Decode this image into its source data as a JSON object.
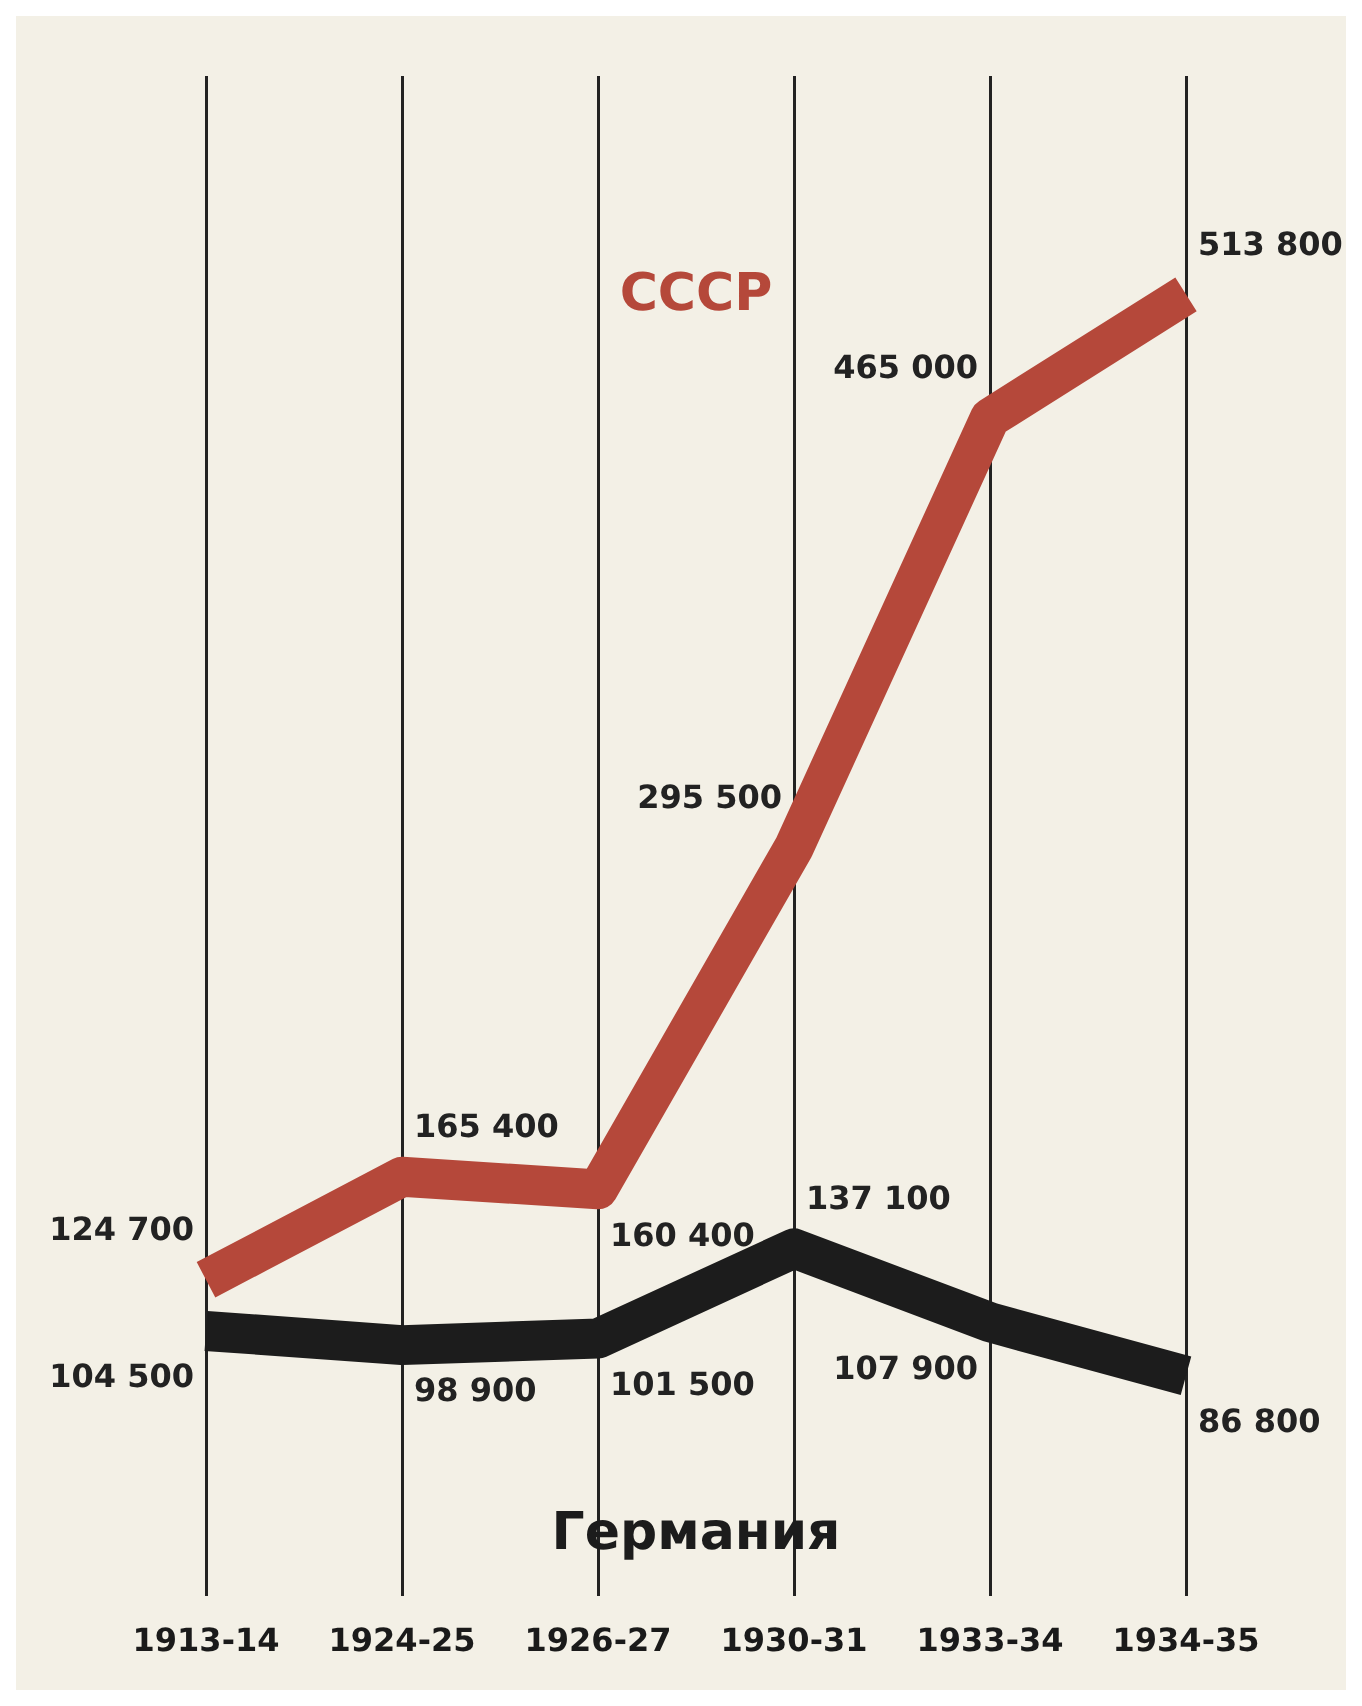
{
  "chart_data": {
    "type": "line",
    "categories": [
      "1913-14",
      "1924-25",
      "1926-27",
      "1930-31",
      "1933-34",
      "1934-35"
    ],
    "series": [
      {
        "name": "СССР",
        "color": "#b5483a",
        "values": [
          124700,
          165400,
          160400,
          295500,
          465000,
          513800
        ]
      },
      {
        "name": "Германия",
        "color": "#1c1c1c",
        "values": [
          104500,
          98900,
          101500,
          137100,
          107900,
          86800
        ]
      }
    ],
    "data_labels": true,
    "grid": "x",
    "tick_labels": "x",
    "legend": false,
    "marker": "none",
    "line_style": "solid"
  }
}
